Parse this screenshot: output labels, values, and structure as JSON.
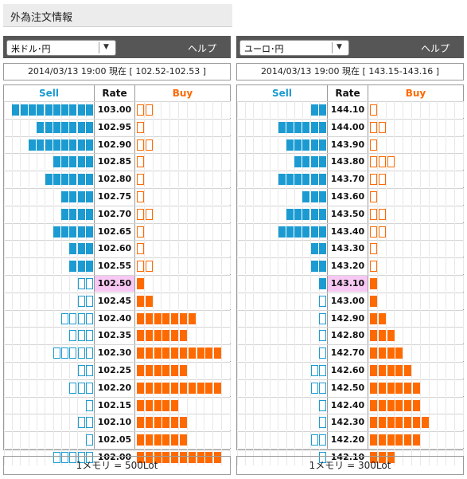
{
  "page_title": "外為注文情報",
  "colors": {
    "sell": "#1b9bd1",
    "buy": "#ff6a00",
    "current_rate_bg": "#f7c8f3"
  },
  "headers": {
    "sell": "Sell",
    "rate": "Rate",
    "buy": "Buy"
  },
  "panels": [
    {
      "pair": "米ドル･円",
      "help": "ヘルプ",
      "rate_text": "2014/03/13  19:00 現在 [ 102.52-102.53 ]",
      "footer": "1メモリ = 500Lot",
      "current_rate": "102.50",
      "rows": [
        {
          "rate": "103.00",
          "sell": 10,
          "sell_style": "filled",
          "buy": 2,
          "buy_style": "outline"
        },
        {
          "rate": "102.95",
          "sell": 7,
          "sell_style": "filled",
          "buy": 1,
          "buy_style": "outline"
        },
        {
          "rate": "102.90",
          "sell": 8,
          "sell_style": "filled",
          "buy": 2,
          "buy_style": "outline"
        },
        {
          "rate": "102.85",
          "sell": 5,
          "sell_style": "filled",
          "buy": 1,
          "buy_style": "outline"
        },
        {
          "rate": "102.80",
          "sell": 6,
          "sell_style": "filled",
          "buy": 1,
          "buy_style": "outline"
        },
        {
          "rate": "102.75",
          "sell": 4,
          "sell_style": "filled",
          "buy": 1,
          "buy_style": "outline"
        },
        {
          "rate": "102.70",
          "sell": 4,
          "sell_style": "filled",
          "buy": 2,
          "buy_style": "outline"
        },
        {
          "rate": "102.65",
          "sell": 5,
          "sell_style": "filled",
          "buy": 1,
          "buy_style": "outline"
        },
        {
          "rate": "102.60",
          "sell": 3,
          "sell_style": "filled",
          "buy": 1,
          "buy_style": "outline"
        },
        {
          "rate": "102.55",
          "sell": 3,
          "sell_style": "filled",
          "buy": 2,
          "buy_style": "outline"
        },
        {
          "rate": "102.50",
          "sell": 2,
          "sell_style": "outline",
          "buy": 1,
          "buy_style": "filled"
        },
        {
          "rate": "102.45",
          "sell": 2,
          "sell_style": "outline",
          "buy": 2,
          "buy_style": "filled"
        },
        {
          "rate": "102.40",
          "sell": 4,
          "sell_style": "outline",
          "buy": 7,
          "buy_style": "filled"
        },
        {
          "rate": "102.35",
          "sell": 3,
          "sell_style": "outline",
          "buy": 6,
          "buy_style": "filled"
        },
        {
          "rate": "102.30",
          "sell": 5,
          "sell_style": "outline",
          "buy": 10,
          "buy_style": "filled"
        },
        {
          "rate": "102.25",
          "sell": 2,
          "sell_style": "outline",
          "buy": 6,
          "buy_style": "filled"
        },
        {
          "rate": "102.20",
          "sell": 3,
          "sell_style": "outline",
          "buy": 10,
          "buy_style": "filled"
        },
        {
          "rate": "102.15",
          "sell": 1,
          "sell_style": "outline",
          "buy": 5,
          "buy_style": "filled"
        },
        {
          "rate": "102.10",
          "sell": 2,
          "sell_style": "outline",
          "buy": 6,
          "buy_style": "filled"
        },
        {
          "rate": "102.05",
          "sell": 1,
          "sell_style": "outline",
          "buy": 6,
          "buy_style": "filled"
        },
        {
          "rate": "102.00",
          "sell": 5,
          "sell_style": "outline",
          "buy": 10,
          "buy_style": "filled"
        }
      ]
    },
    {
      "pair": "ユーロ･円",
      "help": "ヘルプ",
      "rate_text": "2014/03/13  19:00 現在 [ 143.15-143.16 ]",
      "footer": "1メモリ = 300Lot",
      "current_rate": "143.10",
      "rows": [
        {
          "rate": "144.10",
          "sell": 2,
          "sell_style": "filled",
          "buy": 1,
          "buy_style": "outline"
        },
        {
          "rate": "144.00",
          "sell": 6,
          "sell_style": "filled",
          "buy": 2,
          "buy_style": "outline"
        },
        {
          "rate": "143.90",
          "sell": 5,
          "sell_style": "filled",
          "buy": 1,
          "buy_style": "outline"
        },
        {
          "rate": "143.80",
          "sell": 4,
          "sell_style": "filled",
          "buy": 3,
          "buy_style": "outline"
        },
        {
          "rate": "143.70",
          "sell": 6,
          "sell_style": "filled",
          "buy": 2,
          "buy_style": "outline"
        },
        {
          "rate": "143.60",
          "sell": 3,
          "sell_style": "filled",
          "buy": 1,
          "buy_style": "outline"
        },
        {
          "rate": "143.50",
          "sell": 5,
          "sell_style": "filled",
          "buy": 2,
          "buy_style": "outline"
        },
        {
          "rate": "143.40",
          "sell": 6,
          "sell_style": "filled",
          "buy": 2,
          "buy_style": "outline"
        },
        {
          "rate": "143.30",
          "sell": 2,
          "sell_style": "filled",
          "buy": 1,
          "buy_style": "outline"
        },
        {
          "rate": "143.20",
          "sell": 2,
          "sell_style": "filled",
          "buy": 1,
          "buy_style": "outline"
        },
        {
          "rate": "143.10",
          "sell": 1,
          "sell_style": "filled",
          "buy": 1,
          "buy_style": "filled"
        },
        {
          "rate": "143.00",
          "sell": 1,
          "sell_style": "outline",
          "buy": 1,
          "buy_style": "filled"
        },
        {
          "rate": "142.90",
          "sell": 1,
          "sell_style": "outline",
          "buy": 2,
          "buy_style": "filled"
        },
        {
          "rate": "142.80",
          "sell": 1,
          "sell_style": "outline",
          "buy": 3,
          "buy_style": "filled"
        },
        {
          "rate": "142.70",
          "sell": 1,
          "sell_style": "outline",
          "buy": 4,
          "buy_style": "filled"
        },
        {
          "rate": "142.60",
          "sell": 2,
          "sell_style": "outline",
          "buy": 5,
          "buy_style": "filled"
        },
        {
          "rate": "142.50",
          "sell": 2,
          "sell_style": "outline",
          "buy": 6,
          "buy_style": "filled"
        },
        {
          "rate": "142.40",
          "sell": 1,
          "sell_style": "outline",
          "buy": 6,
          "buy_style": "filled"
        },
        {
          "rate": "142.30",
          "sell": 1,
          "sell_style": "outline",
          "buy": 7,
          "buy_style": "filled"
        },
        {
          "rate": "142.20",
          "sell": 2,
          "sell_style": "outline",
          "buy": 6,
          "buy_style": "filled"
        },
        {
          "rate": "142.10",
          "sell": 1,
          "sell_style": "outline",
          "buy": 3,
          "buy_style": "filled"
        }
      ]
    }
  ]
}
